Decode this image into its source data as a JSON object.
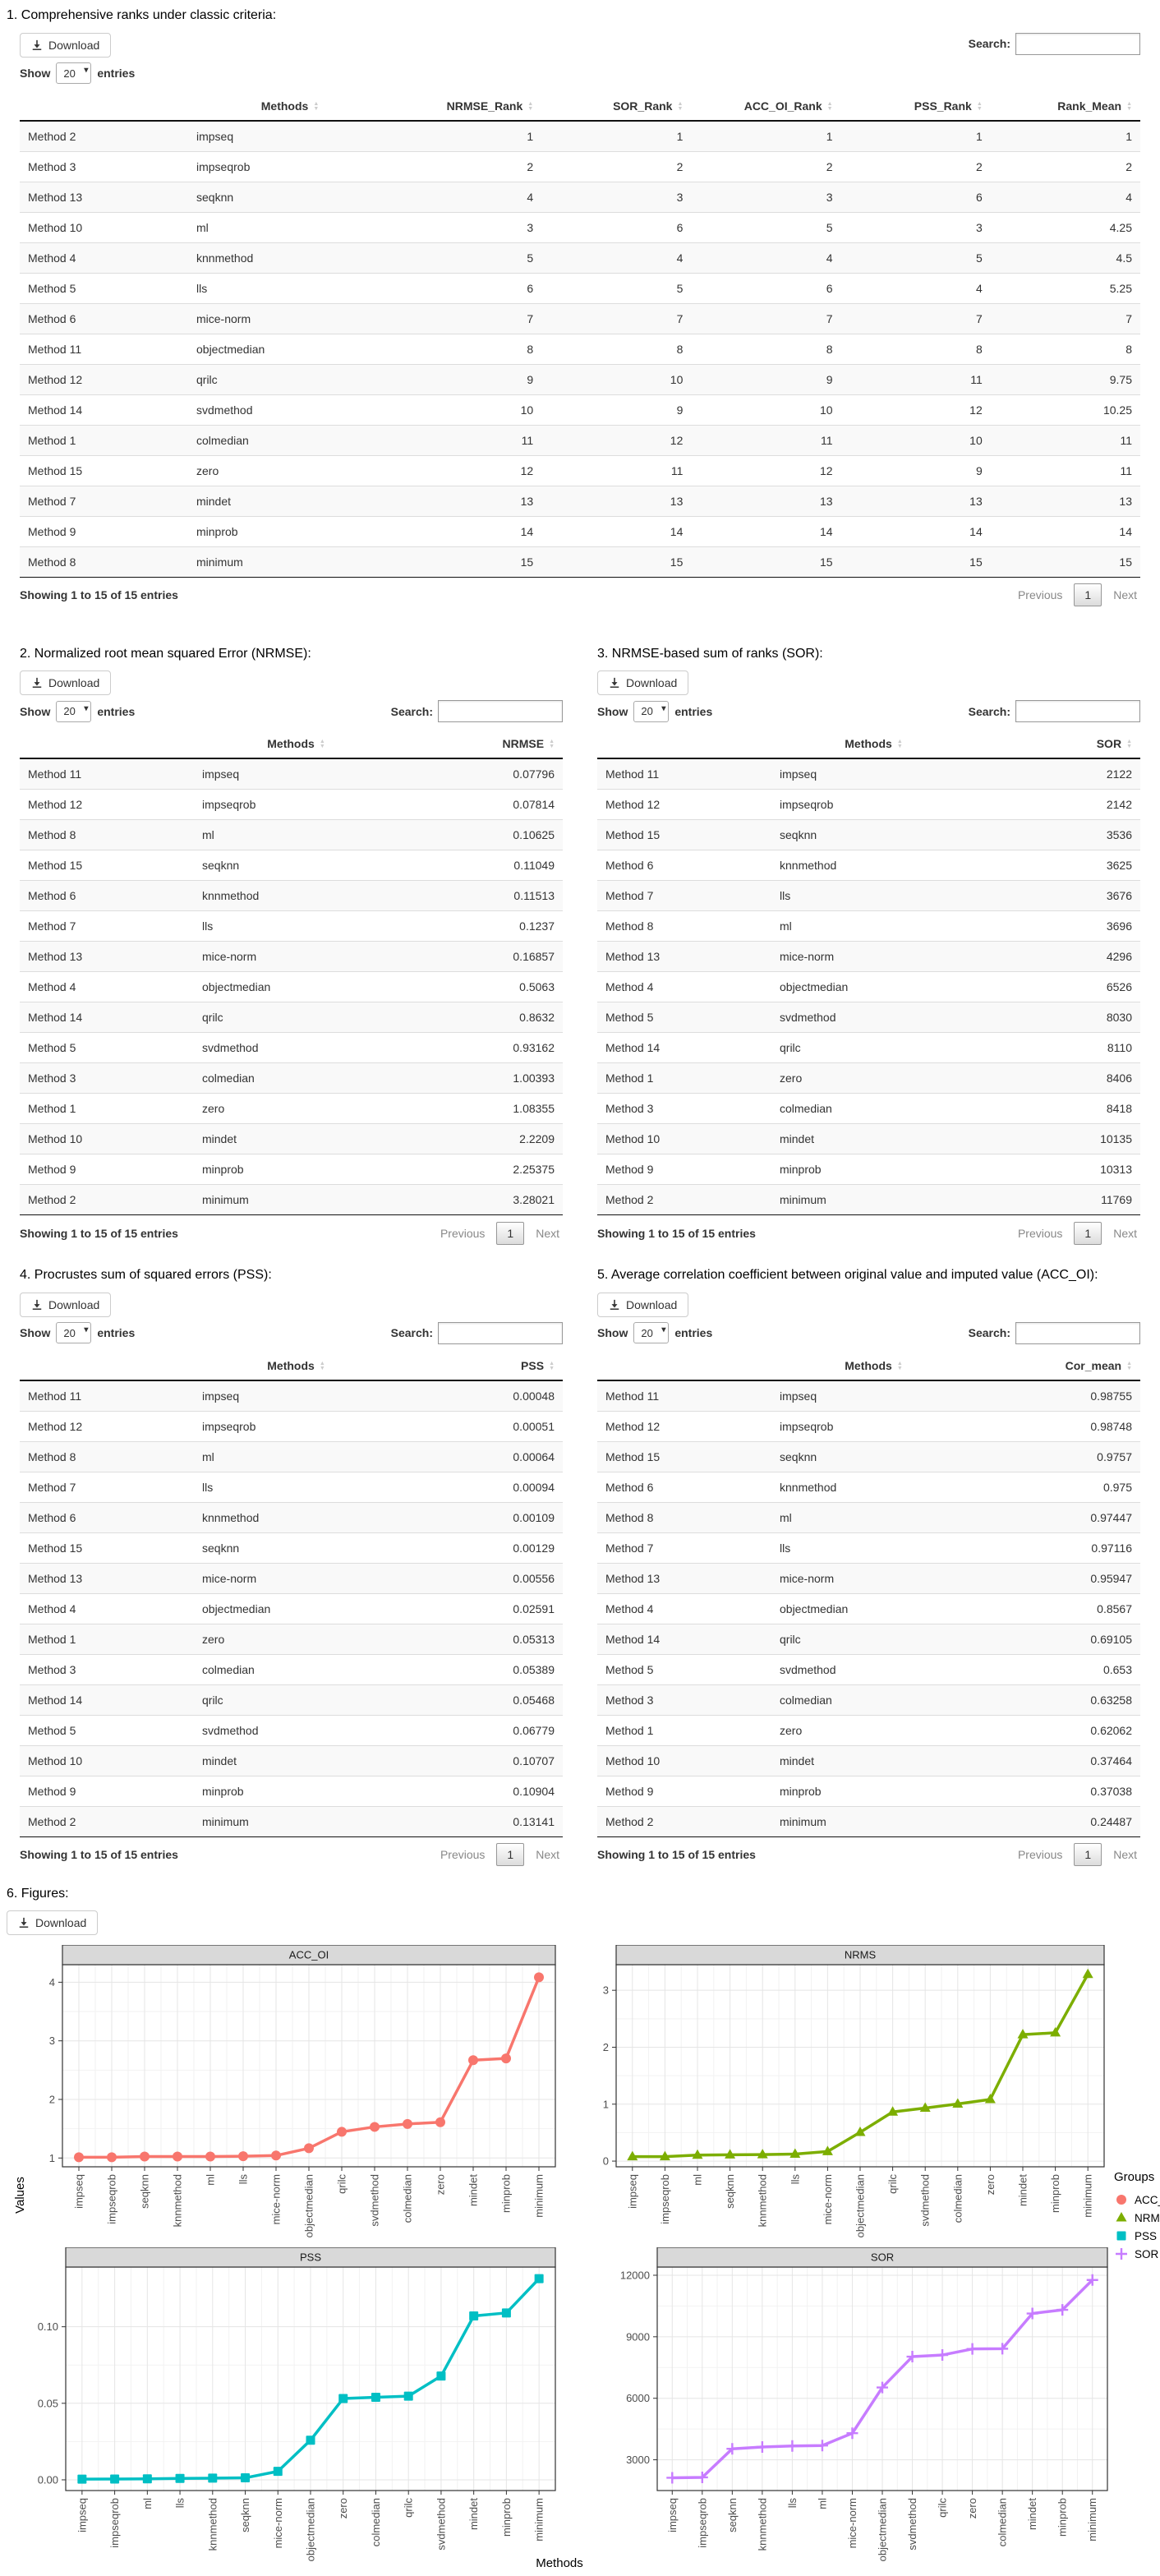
{
  "sections": {
    "s1": {
      "title": "1. Comprehensive ranks under classic criteria:",
      "controls": {
        "download": "Download",
        "show": "Show",
        "page_size": "20",
        "entries": "entries",
        "search": "Search:"
      },
      "table": {
        "headers": [
          "Methods",
          "NRMSE_Rank",
          "SOR_Rank",
          "ACC_OI_Rank",
          "PSS_Rank",
          "Rank_Mean"
        ],
        "rows": [
          {
            "name": "Method 2",
            "method": "impseq",
            "values": [
              "1",
              "1",
              "1",
              "1",
              "1"
            ]
          },
          {
            "name": "Method 3",
            "method": "impseqrob",
            "values": [
              "2",
              "2",
              "2",
              "2",
              "2"
            ]
          },
          {
            "name": "Method 13",
            "method": "seqknn",
            "values": [
              "4",
              "3",
              "3",
              "6",
              "4"
            ]
          },
          {
            "name": "Method 10",
            "method": "ml",
            "values": [
              "3",
              "6",
              "5",
              "3",
              "4.25"
            ]
          },
          {
            "name": "Method 4",
            "method": "knnmethod",
            "values": [
              "5",
              "4",
              "4",
              "5",
              "4.5"
            ]
          },
          {
            "name": "Method 5",
            "method": "lls",
            "values": [
              "6",
              "5",
              "6",
              "4",
              "5.25"
            ]
          },
          {
            "name": "Method 6",
            "method": "mice-norm",
            "values": [
              "7",
              "7",
              "7",
              "7",
              "7"
            ]
          },
          {
            "name": "Method 11",
            "method": "objectmedian",
            "values": [
              "8",
              "8",
              "8",
              "8",
              "8"
            ]
          },
          {
            "name": "Method 12",
            "method": "qrilc",
            "values": [
              "9",
              "10",
              "9",
              "11",
              "9.75"
            ]
          },
          {
            "name": "Method 14",
            "method": "svdmethod",
            "values": [
              "10",
              "9",
              "10",
              "12",
              "10.25"
            ]
          },
          {
            "name": "Method 1",
            "method": "colmedian",
            "values": [
              "11",
              "12",
              "11",
              "10",
              "11"
            ]
          },
          {
            "name": "Method 15",
            "method": "zero",
            "values": [
              "12",
              "11",
              "12",
              "9",
              "11"
            ]
          },
          {
            "name": "Method 7",
            "method": "mindet",
            "values": [
              "13",
              "13",
              "13",
              "13",
              "13"
            ]
          },
          {
            "name": "Method 9",
            "method": "minprob",
            "values": [
              "14",
              "14",
              "14",
              "14",
              "14"
            ]
          },
          {
            "name": "Method 8",
            "method": "minimum",
            "values": [
              "15",
              "15",
              "15",
              "15",
              "15"
            ]
          }
        ]
      },
      "footer": {
        "info": "Showing 1 to 15 of 15 entries",
        "previous": "Previous",
        "page": "1",
        "next": "Next"
      }
    },
    "s2": {
      "title": "2. Normalized root mean squared Error (NRMSE):",
      "controls": {
        "download": "Download",
        "show": "Show",
        "page_size": "20",
        "entries": "entries",
        "search": "Search:"
      },
      "table": {
        "headers": [
          "Methods",
          "NRMSE"
        ],
        "rows": [
          {
            "name": "Method 11",
            "method": "impseq",
            "values": [
              "0.07796"
            ]
          },
          {
            "name": "Method 12",
            "method": "impseqrob",
            "values": [
              "0.07814"
            ]
          },
          {
            "name": "Method 8",
            "method": "ml",
            "values": [
              "0.10625"
            ]
          },
          {
            "name": "Method 15",
            "method": "seqknn",
            "values": [
              "0.11049"
            ]
          },
          {
            "name": "Method 6",
            "method": "knnmethod",
            "values": [
              "0.11513"
            ]
          },
          {
            "name": "Method 7",
            "method": "lls",
            "values": [
              "0.1237"
            ]
          },
          {
            "name": "Method 13",
            "method": "mice-norm",
            "values": [
              "0.16857"
            ]
          },
          {
            "name": "Method 4",
            "method": "objectmedian",
            "values": [
              "0.5063"
            ]
          },
          {
            "name": "Method 14",
            "method": "qrilc",
            "values": [
              "0.8632"
            ]
          },
          {
            "name": "Method 5",
            "method": "svdmethod",
            "values": [
              "0.93162"
            ]
          },
          {
            "name": "Method 3",
            "method": "colmedian",
            "values": [
              "1.00393"
            ]
          },
          {
            "name": "Method 1",
            "method": "zero",
            "values": [
              "1.08355"
            ]
          },
          {
            "name": "Method 10",
            "method": "mindet",
            "values": [
              "2.2209"
            ]
          },
          {
            "name": "Method 9",
            "method": "minprob",
            "values": [
              "2.25375"
            ]
          },
          {
            "name": "Method 2",
            "method": "minimum",
            "values": [
              "3.28021"
            ]
          }
        ]
      },
      "footer": {
        "info": "Showing 1 to 15 of 15 entries",
        "previous": "Previous",
        "page": "1",
        "next": "Next"
      }
    },
    "s3": {
      "title": "3. NRMSE-based sum of ranks (SOR):",
      "controls": {
        "download": "Download",
        "show": "Show",
        "page_size": "20",
        "entries": "entries",
        "search": "Search:"
      },
      "table": {
        "headers": [
          "Methods",
          "SOR"
        ],
        "rows": [
          {
            "name": "Method 11",
            "method": "impseq",
            "values": [
              "2122"
            ]
          },
          {
            "name": "Method 12",
            "method": "impseqrob",
            "values": [
              "2142"
            ]
          },
          {
            "name": "Method 15",
            "method": "seqknn",
            "values": [
              "3536"
            ]
          },
          {
            "name": "Method 6",
            "method": "knnmethod",
            "values": [
              "3625"
            ]
          },
          {
            "name": "Method 7",
            "method": "lls",
            "values": [
              "3676"
            ]
          },
          {
            "name": "Method 8",
            "method": "ml",
            "values": [
              "3696"
            ]
          },
          {
            "name": "Method 13",
            "method": "mice-norm",
            "values": [
              "4296"
            ]
          },
          {
            "name": "Method 4",
            "method": "objectmedian",
            "values": [
              "6526"
            ]
          },
          {
            "name": "Method 5",
            "method": "svdmethod",
            "values": [
              "8030"
            ]
          },
          {
            "name": "Method 14",
            "method": "qrilc",
            "values": [
              "8110"
            ]
          },
          {
            "name": "Method 1",
            "method": "zero",
            "values": [
              "8406"
            ]
          },
          {
            "name": "Method 3",
            "method": "colmedian",
            "values": [
              "8418"
            ]
          },
          {
            "name": "Method 10",
            "method": "mindet",
            "values": [
              "10135"
            ]
          },
          {
            "name": "Method 9",
            "method": "minprob",
            "values": [
              "10313"
            ]
          },
          {
            "name": "Method 2",
            "method": "minimum",
            "values": [
              "11769"
            ]
          }
        ]
      },
      "footer": {
        "info": "Showing 1 to 15 of 15 entries",
        "previous": "Previous",
        "page": "1",
        "next": "Next"
      }
    },
    "s4": {
      "title": "4. Procrustes sum of squared errors (PSS):",
      "controls": {
        "download": "Download",
        "show": "Show",
        "page_size": "20",
        "entries": "entries",
        "search": "Search:"
      },
      "table": {
        "headers": [
          "Methods",
          "PSS"
        ],
        "rows": [
          {
            "name": "Method 11",
            "method": "impseq",
            "values": [
              "0.00048"
            ]
          },
          {
            "name": "Method 12",
            "method": "impseqrob",
            "values": [
              "0.00051"
            ]
          },
          {
            "name": "Method 8",
            "method": "ml",
            "values": [
              "0.00064"
            ]
          },
          {
            "name": "Method 7",
            "method": "lls",
            "values": [
              "0.00094"
            ]
          },
          {
            "name": "Method 6",
            "method": "knnmethod",
            "values": [
              "0.00109"
            ]
          },
          {
            "name": "Method 15",
            "method": "seqknn",
            "values": [
              "0.00129"
            ]
          },
          {
            "name": "Method 13",
            "method": "mice-norm",
            "values": [
              "0.00556"
            ]
          },
          {
            "name": "Method 4",
            "method": "objectmedian",
            "values": [
              "0.02591"
            ]
          },
          {
            "name": "Method 1",
            "method": "zero",
            "values": [
              "0.05313"
            ]
          },
          {
            "name": "Method 3",
            "method": "colmedian",
            "values": [
              "0.05389"
            ]
          },
          {
            "name": "Method 14",
            "method": "qrilc",
            "values": [
              "0.05468"
            ]
          },
          {
            "name": "Method 5",
            "method": "svdmethod",
            "values": [
              "0.06779"
            ]
          },
          {
            "name": "Method 10",
            "method": "mindet",
            "values": [
              "0.10707"
            ]
          },
          {
            "name": "Method 9",
            "method": "minprob",
            "values": [
              "0.10904"
            ]
          },
          {
            "name": "Method 2",
            "method": "minimum",
            "values": [
              "0.13141"
            ]
          }
        ]
      },
      "footer": {
        "info": "Showing 1 to 15 of 15 entries",
        "previous": "Previous",
        "page": "1",
        "next": "Next"
      }
    },
    "s5": {
      "title": "5. Average correlation coefficient between original value and imputed value (ACC_OI):",
      "controls": {
        "download": "Download",
        "show": "Show",
        "page_size": "20",
        "entries": "entries",
        "search": "Search:"
      },
      "table": {
        "headers": [
          "Methods",
          "Cor_mean"
        ],
        "rows": [
          {
            "name": "Method 11",
            "method": "impseq",
            "values": [
              "0.98755"
            ]
          },
          {
            "name": "Method 12",
            "method": "impseqrob",
            "values": [
              "0.98748"
            ]
          },
          {
            "name": "Method 15",
            "method": "seqknn",
            "values": [
              "0.9757"
            ]
          },
          {
            "name": "Method 6",
            "method": "knnmethod",
            "values": [
              "0.975"
            ]
          },
          {
            "name": "Method 8",
            "method": "ml",
            "values": [
              "0.97447"
            ]
          },
          {
            "name": "Method 7",
            "method": "lls",
            "values": [
              "0.97116"
            ]
          },
          {
            "name": "Method 13",
            "method": "mice-norm",
            "values": [
              "0.95947"
            ]
          },
          {
            "name": "Method 4",
            "method": "objectmedian",
            "values": [
              "0.8567"
            ]
          },
          {
            "name": "Method 14",
            "method": "qrilc",
            "values": [
              "0.69105"
            ]
          },
          {
            "name": "Method 5",
            "method": "svdmethod",
            "values": [
              "0.653"
            ]
          },
          {
            "name": "Method 3",
            "method": "colmedian",
            "values": [
              "0.63258"
            ]
          },
          {
            "name": "Method 1",
            "method": "zero",
            "values": [
              "0.62062"
            ]
          },
          {
            "name": "Method 10",
            "method": "mindet",
            "values": [
              "0.37464"
            ]
          },
          {
            "name": "Method 9",
            "method": "minprob",
            "values": [
              "0.37038"
            ]
          },
          {
            "name": "Method 2",
            "method": "minimum",
            "values": [
              "0.24487"
            ]
          }
        ]
      },
      "footer": {
        "info": "Showing 1 to 15 of 15 entries",
        "previous": "Previous",
        "page": "1",
        "next": "Next"
      }
    },
    "s6": {
      "title": "6. Figures:",
      "controls": {
        "download": "Download"
      }
    }
  },
  "figures": {
    "ylabel": "Values",
    "xlabel": "Methods",
    "legend_title": "Groups",
    "legend": [
      {
        "label": "ACC_OI",
        "color": "#F8766D",
        "shape": "circle"
      },
      {
        "label": "NRMS",
        "color": "#7CAE00",
        "shape": "triangle"
      },
      {
        "label": "PSS",
        "color": "#00BFC4",
        "shape": "square"
      },
      {
        "label": "SOR",
        "color": "#C77CFF",
        "shape": "plus"
      }
    ]
  },
  "chart_data": [
    {
      "type": "line",
      "title": "ACC_OI",
      "color": "#F8766D",
      "marker": "circle",
      "categories": [
        "impseq",
        "impseqrob",
        "seqknn",
        "knnmethod",
        "ml",
        "lls",
        "mice-norm",
        "objectmedian",
        "qrilc",
        "svdmethod",
        "colmedian",
        "zero",
        "mindet",
        "minprob",
        "minimum"
      ],
      "values": [
        1.013,
        1.013,
        1.025,
        1.026,
        1.026,
        1.03,
        1.042,
        1.167,
        1.447,
        1.531,
        1.581,
        1.611,
        2.669,
        2.7,
        4.084
      ],
      "yticks": [
        1,
        2,
        3,
        4
      ],
      "ytick_labels": [
        "1",
        "2",
        "3",
        "4"
      ],
      "ylim": [
        0.85,
        4.3
      ],
      "xlabel": "Methods",
      "ylabel": "Values",
      "grid": true,
      "legend_position": "right"
    },
    {
      "type": "line",
      "title": "NRMS",
      "color": "#7CAE00",
      "marker": "triangle",
      "categories": [
        "impseq",
        "impseqrob",
        "ml",
        "seqknn",
        "knnmethod",
        "lls",
        "mice-norm",
        "objectmedian",
        "qrilc",
        "svdmethod",
        "colmedian",
        "zero",
        "mindet",
        "minprob",
        "minimum"
      ],
      "values": [
        0.07796,
        0.07814,
        0.10625,
        0.11049,
        0.11513,
        0.1237,
        0.16857,
        0.5063,
        0.8632,
        0.93162,
        1.00393,
        1.08355,
        2.2209,
        2.25375,
        3.28021
      ],
      "yticks": [
        0,
        1,
        2,
        3
      ],
      "ytick_labels": [
        "0",
        "1",
        "2",
        "3"
      ],
      "ylim": [
        -0.1,
        3.45
      ],
      "xlabel": "Methods",
      "ylabel": "Values",
      "grid": true,
      "legend_position": "right"
    },
    {
      "type": "line",
      "title": "PSS",
      "color": "#00BFC4",
      "marker": "square",
      "categories": [
        "impseq",
        "impseqrob",
        "ml",
        "lls",
        "knnmethod",
        "seqknn",
        "mice-norm",
        "objectmedian",
        "zero",
        "colmedian",
        "qrilc",
        "svdmethod",
        "mindet",
        "minprob",
        "minimum"
      ],
      "values": [
        0.00048,
        0.00051,
        0.00064,
        0.00094,
        0.00109,
        0.00129,
        0.00556,
        0.02591,
        0.05313,
        0.05389,
        0.05468,
        0.06779,
        0.10707,
        0.10904,
        0.13141
      ],
      "yticks": [
        0,
        0.05,
        0.1
      ],
      "ytick_labels": [
        "0.00",
        "0.05",
        "0.10"
      ],
      "ylim": [
        -0.007,
        0.139
      ],
      "xlabel": "Methods",
      "ylabel": "Values",
      "grid": true,
      "legend_position": "right"
    },
    {
      "type": "line",
      "title": "SOR",
      "color": "#C77CFF",
      "marker": "plus",
      "categories": [
        "impseq",
        "impseqrob",
        "seqknn",
        "knnmethod",
        "lls",
        "ml",
        "mice-norm",
        "objectmedian",
        "svdmethod",
        "qrilc",
        "zero",
        "colmedian",
        "mindet",
        "minprob",
        "minimum"
      ],
      "values": [
        2122,
        2142,
        3536,
        3625,
        3676,
        3696,
        4296,
        6526,
        8030,
        8110,
        8406,
        8418,
        10135,
        10313,
        11769
      ],
      "yticks": [
        3000,
        6000,
        9000,
        12000
      ],
      "ytick_labels": [
        "3000",
        "6000",
        "9000",
        "12000"
      ],
      "ylim": [
        1500,
        12400
      ],
      "xlabel": "Methods",
      "ylabel": "Values",
      "grid": true,
      "legend_position": "right"
    }
  ]
}
